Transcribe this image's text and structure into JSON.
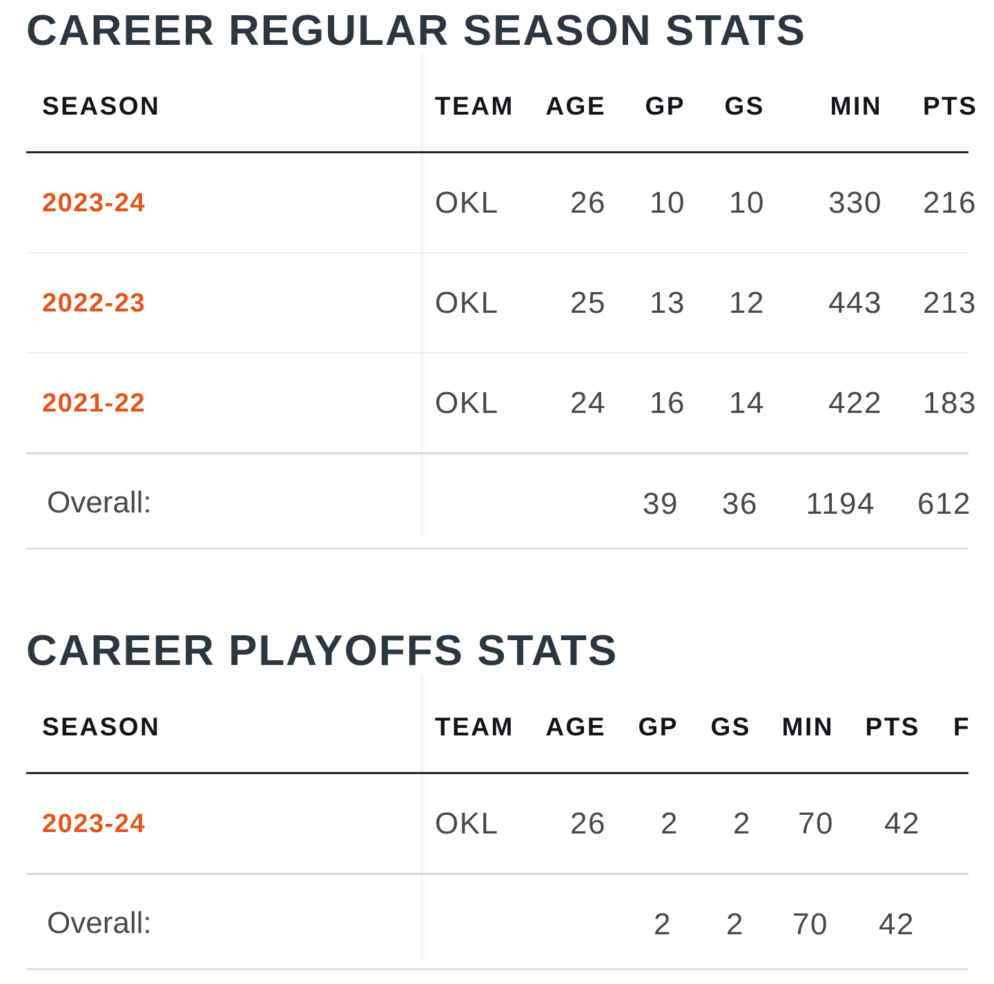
{
  "regular": {
    "title": "CAREER REGULAR SEASON STATS",
    "headers": {
      "season": "SEASON",
      "team": "TEAM",
      "age": "AGE",
      "gp": "GP",
      "gs": "GS",
      "min": "MIN",
      "pts": "PTS"
    },
    "rows": [
      {
        "season": "2023-24",
        "team": "OKL",
        "age": "26",
        "gp": "10",
        "gs": "10",
        "min": "330",
        "pts": "216"
      },
      {
        "season": "2022-23",
        "team": "OKL",
        "age": "25",
        "gp": "13",
        "gs": "12",
        "min": "443",
        "pts": "213"
      },
      {
        "season": "2021-22",
        "team": "OKL",
        "age": "24",
        "gp": "16",
        "gs": "14",
        "min": "422",
        "pts": "183"
      }
    ],
    "overall": {
      "label": "Overall:",
      "gp": "39",
      "gs": "36",
      "min": "1194",
      "pts": "612"
    }
  },
  "playoffs": {
    "title": "CAREER PLAYOFFS STATS",
    "headers": {
      "season": "SEASON",
      "team": "TEAM",
      "age": "AGE",
      "gp": "GP",
      "gs": "GS",
      "min": "MIN",
      "pts": "PTS",
      "next": "F"
    },
    "rows": [
      {
        "season": "2023-24",
        "team": "OKL",
        "age": "26",
        "gp": "2",
        "gs": "2",
        "min": "70",
        "pts": "42"
      }
    ],
    "overall": {
      "label": "Overall:",
      "gp": "2",
      "gs": "2",
      "min": "70",
      "pts": "42"
    }
  },
  "colors": {
    "season_link": "#e3561b",
    "title": "#2b3640",
    "header": "#111418",
    "value": "#45494d"
  }
}
